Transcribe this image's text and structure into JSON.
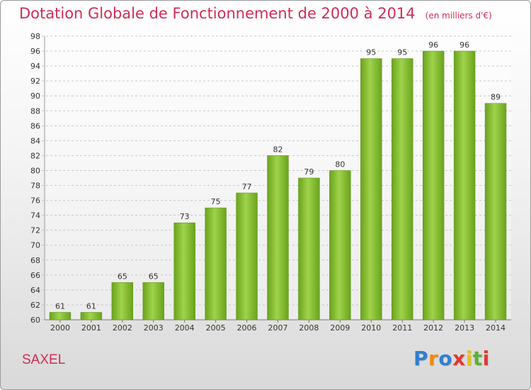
{
  "chart_data": {
    "type": "bar",
    "title": "Dotation Globale de Fonctionnement de 2000 à 2014",
    "subtitle": "(en milliers d'€)",
    "categories": [
      "2000",
      "2001",
      "2002",
      "2003",
      "2004",
      "2005",
      "2006",
      "2007",
      "2008",
      "2009",
      "2010",
      "2011",
      "2012",
      "2013",
      "2014"
    ],
    "values": [
      61,
      61,
      65,
      65,
      73,
      75,
      77,
      82,
      79,
      80,
      95,
      95,
      96,
      96,
      89
    ],
    "ylim": [
      60,
      98
    ],
    "yticks": [
      60,
      62,
      64,
      66,
      68,
      70,
      72,
      74,
      76,
      78,
      80,
      82,
      84,
      86,
      88,
      90,
      92,
      94,
      96,
      98
    ],
    "grid": true,
    "bar_color": "#7cb52a"
  },
  "commune": "SAXEL",
  "logo": {
    "letters": [
      "P",
      "r",
      "o",
      "x",
      "i",
      "t",
      "i"
    ],
    "colors": [
      "#2f7fd1",
      "#f08a16",
      "#2f7fd1",
      "#e03a2e",
      "#e8c21b",
      "#5ab13a",
      "#e03a2e"
    ]
  }
}
